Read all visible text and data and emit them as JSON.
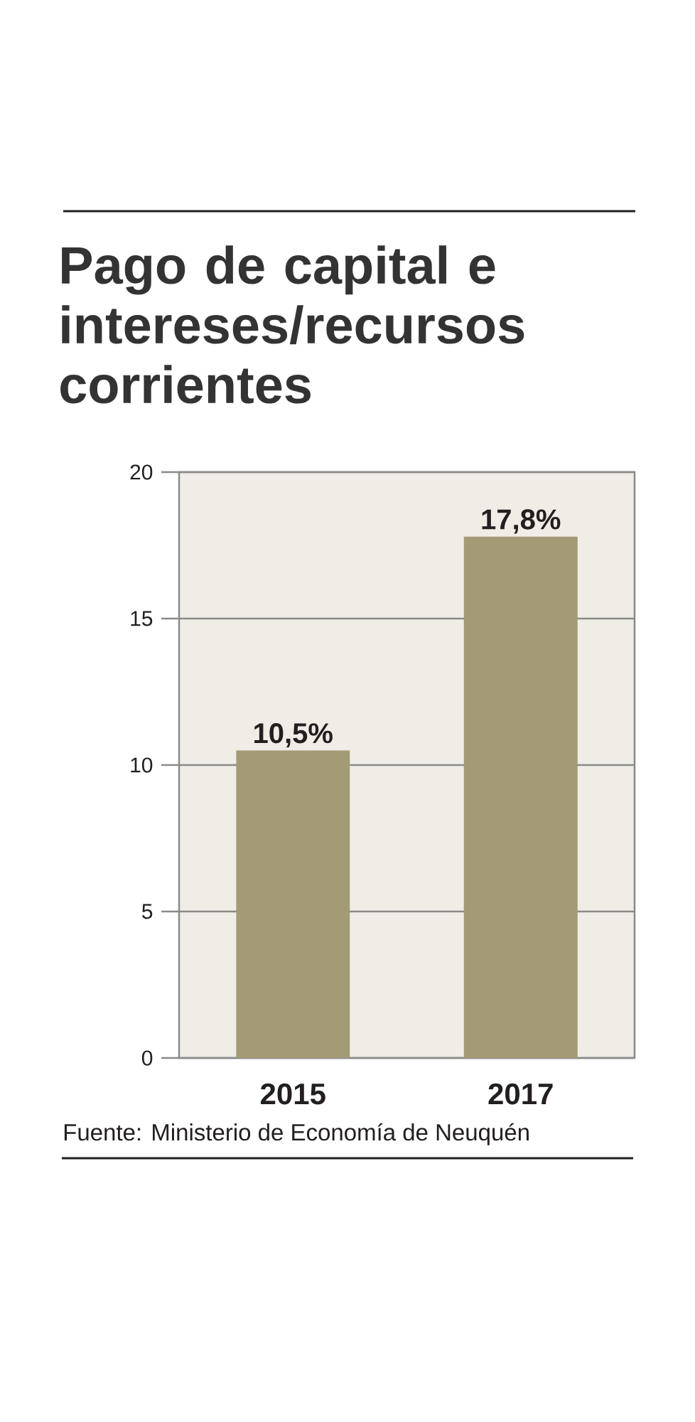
{
  "chart_data": {
    "type": "bar",
    "title": "Pago de capital e intereses/recursos corrientes",
    "categories": [
      "2015",
      "2017"
    ],
    "values": [
      10.5,
      17.8
    ],
    "value_labels": [
      "10,5%",
      "17,8%"
    ],
    "color": "#a39a76",
    "ylim": [
      0,
      20
    ],
    "yticks": [
      0,
      5,
      10,
      15,
      20
    ],
    "grid": "y",
    "annotations": [
      "Fuente: Ministerio de Economía de Neuquén"
    ]
  }
}
